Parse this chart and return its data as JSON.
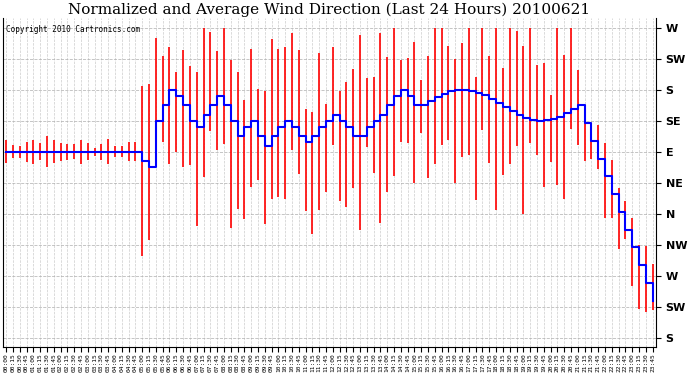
{
  "title": "Normalized and Average Wind Direction (Last 24 Hours) 20100621",
  "copyright_text": "Copyright 2010 Cartronics.com",
  "background_color": "#ffffff",
  "plot_bg_color": "#ffffff",
  "grid_color": "#aaaaaa",
  "title_fontsize": 11,
  "bar_color": "#ff0000",
  "line_color": "#0000ff",
  "line_width": 1.5,
  "ytick_labels_top_to_bottom": [
    "W",
    "SW",
    "S",
    "SE",
    "E",
    "NE",
    "N",
    "NW",
    "W",
    "SW",
    "S"
  ],
  "fig_width": 6.9,
  "fig_height": 3.75,
  "dpi": 100
}
